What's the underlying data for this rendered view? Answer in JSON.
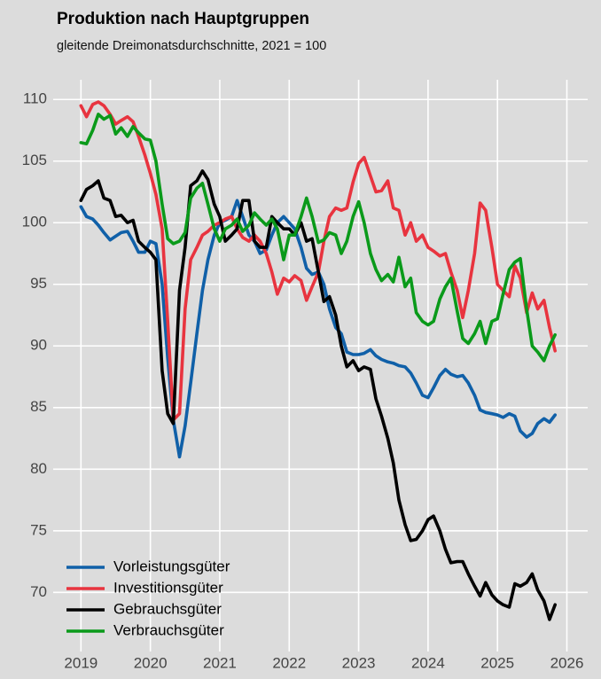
{
  "chart_data": {
    "type": "line",
    "title": "Produktion nach Hauptgruppen",
    "subtitle": "gleitende Dreimonatsdurchschnitte, 2021 = 100",
    "x": [
      2019,
      2019.08,
      2019.17,
      2019.25,
      2019.33,
      2019.42,
      2019.5,
      2019.58,
      2019.67,
      2019.75,
      2019.83,
      2019.92,
      2020,
      2020.08,
      2020.17,
      2020.25,
      2020.33,
      2020.42,
      2020.5,
      2020.58,
      2020.67,
      2020.75,
      2020.83,
      2020.92,
      2021,
      2021.08,
      2021.17,
      2021.25,
      2021.33,
      2021.42,
      2021.5,
      2021.58,
      2021.67,
      2021.75,
      2021.83,
      2021.92,
      2022,
      2022.08,
      2022.17,
      2022.25,
      2022.33,
      2022.42,
      2022.5,
      2022.58,
      2022.67,
      2022.75,
      2022.83,
      2022.92,
      2023,
      2023.08,
      2023.17,
      2023.25,
      2023.33,
      2023.42,
      2023.5,
      2023.58,
      2023.67,
      2023.75,
      2023.83,
      2023.92,
      2024,
      2024.08,
      2024.17,
      2024.25,
      2024.33,
      2024.42,
      2024.5,
      2024.58,
      2024.67,
      2024.75,
      2024.83,
      2024.92,
      2025,
      2025.08,
      2025.17,
      2025.25,
      2025.33,
      2025.42,
      2025.5,
      2025.58,
      2025.67,
      2025.75,
      2025.83
    ],
    "series": [
      {
        "name": "Vorleistungsgüter",
        "color": "#1060a8",
        "values": [
          101.3,
          100.5,
          100.3,
          99.8,
          99.2,
          98.6,
          98.9,
          99.2,
          99.3,
          98.5,
          97.6,
          97.6,
          98.5,
          98.3,
          95,
          89,
          84,
          81,
          83.5,
          87,
          91,
          94.5,
          97,
          99,
          100,
          100.2,
          100.5,
          101.8,
          100.5,
          99,
          98.5,
          97.5,
          97.8,
          99,
          100,
          100.5,
          100,
          99.5,
          98,
          96.3,
          95.8,
          96,
          95,
          93,
          91.5,
          91,
          89.5,
          89.3,
          89.3,
          89.4,
          89.7,
          89.2,
          88.9,
          88.7,
          88.6,
          88.4,
          88.3,
          87.8,
          87,
          86,
          85.8,
          86.6,
          87.6,
          88.1,
          87.7,
          87.5,
          87.6,
          87,
          86,
          84.8,
          84.6,
          84.5,
          84.4,
          84.2,
          84.5,
          84.3,
          83.1,
          82.6,
          82.9,
          83.7,
          84.1,
          83.8,
          84.4
        ]
      },
      {
        "name": "Investitionsgüter",
        "color": "#e8343f",
        "values": [
          109.5,
          108.6,
          109.6,
          109.8,
          109.5,
          108.8,
          108,
          108.3,
          108.6,
          108.2,
          107,
          105.5,
          104,
          102.3,
          99.5,
          92,
          84,
          84.5,
          93,
          97,
          98,
          99,
          99.3,
          99.8,
          100,
          100.3,
          100.5,
          99.5,
          98.8,
          98.5,
          99,
          98.5,
          97.5,
          96,
          94.2,
          95.5,
          95.2,
          95.7,
          95.3,
          93.7,
          94.8,
          96,
          98.5,
          100.5,
          101.2,
          101,
          101.2,
          103.3,
          104.8,
          105.3,
          103.8,
          102.5,
          102.6,
          103.4,
          101.2,
          101,
          99,
          100,
          98.5,
          99,
          98,
          97.7,
          97.3,
          97.5,
          96,
          94.5,
          92.3,
          94.5,
          97.5,
          101.6,
          101,
          98,
          95,
          94.5,
          94,
          96.5,
          95.5,
          92.7,
          94.3,
          93,
          93.7,
          91.5,
          89.6
        ]
      },
      {
        "name": "Gebrauchsgüter",
        "color": "#000000",
        "values": [
          101.8,
          102.7,
          103,
          103.4,
          102,
          101.8,
          100.5,
          100.6,
          100,
          100.2,
          98.5,
          98,
          97.6,
          97,
          88,
          84.5,
          83.7,
          94.5,
          98,
          103,
          103.4,
          104.2,
          103.5,
          101.5,
          100.5,
          98.5,
          99,
          99.5,
          101.8,
          101.8,
          98.5,
          98,
          98,
          100.5,
          100,
          99.5,
          99.5,
          99,
          100,
          98.5,
          98.7,
          96,
          93.6,
          94,
          92.5,
          90,
          88.3,
          88.8,
          88,
          88.3,
          88.1,
          85.7,
          84.3,
          82.5,
          80.5,
          77.5,
          75.5,
          74.2,
          74.3,
          75,
          75.9,
          76.2,
          75,
          73.5,
          72.4,
          72.5,
          72.5,
          71.5,
          70.5,
          69.7,
          70.8,
          69.8,
          69.3,
          69,
          68.8,
          70.7,
          70.5,
          70.8,
          71.5,
          70.2,
          69.3,
          67.8,
          69
        ]
      },
      {
        "name": "Verbrauchsgüter",
        "color": "#0a9a1a",
        "values": [
          106.5,
          106.4,
          107.5,
          108.8,
          108.4,
          108.7,
          107.2,
          107.7,
          107,
          107.8,
          107.3,
          106.8,
          106.7,
          105,
          101.5,
          98.7,
          98.3,
          98.5,
          99.2,
          102,
          102.8,
          103.2,
          101.5,
          99.5,
          98.5,
          99.5,
          99.8,
          100.3,
          99.3,
          99.8,
          100.8,
          100.3,
          99.8,
          100.3,
          99.5,
          97,
          99,
          99,
          100.5,
          102,
          100.5,
          98.4,
          98.6,
          99.2,
          99,
          97.5,
          98.5,
          100.5,
          101.7,
          100,
          97.5,
          96.2,
          95.3,
          95.8,
          95.2,
          97.2,
          94.8,
          95.5,
          92.7,
          92,
          91.7,
          92,
          93.8,
          94.8,
          95.5,
          92.8,
          90.6,
          90.2,
          91,
          92,
          90.2,
          92,
          92.2,
          94.2,
          96.2,
          96.8,
          97.1,
          93,
          90,
          89.5,
          88.8,
          90,
          90.9
        ]
      }
    ],
    "xlim": [
      2018.6,
      2026.3
    ],
    "xticks": [
      2019,
      2020,
      2021,
      2022,
      2023,
      2024,
      2025,
      2026
    ],
    "ylim": [
      65.2,
      111.6
    ],
    "yticks": [
      70,
      75,
      80,
      85,
      90,
      95,
      100,
      105,
      110
    ],
    "grid": true,
    "legend": "bottom-left"
  }
}
